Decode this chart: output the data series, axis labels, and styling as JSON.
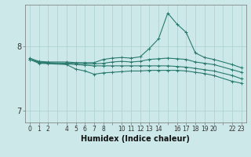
{
  "xlabel": "Humidex (Indice chaleur)",
  "bg_color": "#cce8e8",
  "line_color": "#2a7a6e",
  "grid_color": "#aacfcf",
  "hours": [
    0,
    1,
    2,
    3,
    4,
    5,
    6,
    7,
    8,
    9,
    10,
    11,
    12,
    13,
    14,
    15,
    16,
    17,
    18,
    19,
    20,
    21,
    22,
    23
  ],
  "series1": [
    7.82,
    7.77,
    7.76,
    null,
    7.76,
    7.75,
    7.75,
    7.75,
    7.8,
    7.82,
    7.83,
    7.82,
    7.84,
    7.97,
    8.12,
    8.52,
    8.35,
    8.22,
    7.9,
    7.83,
    7.8,
    null,
    7.72,
    7.67
  ],
  "series2": [
    7.8,
    7.76,
    7.75,
    null,
    7.74,
    7.74,
    7.73,
    7.73,
    7.74,
    7.76,
    7.77,
    7.76,
    7.77,
    7.8,
    7.81,
    7.82,
    7.81,
    7.8,
    7.76,
    7.74,
    7.72,
    null,
    7.64,
    7.6
  ],
  "series3": [
    7.8,
    7.75,
    7.74,
    null,
    7.73,
    7.72,
    7.71,
    7.7,
    7.7,
    7.7,
    7.7,
    7.7,
    7.7,
    7.7,
    7.7,
    7.7,
    7.69,
    7.68,
    7.66,
    7.64,
    7.62,
    null,
    7.55,
    7.5
  ],
  "series4": [
    7.8,
    7.74,
    null,
    null,
    7.72,
    7.65,
    7.62,
    7.57,
    7.59,
    7.6,
    7.61,
    7.62,
    7.62,
    7.63,
    7.63,
    7.63,
    7.63,
    7.62,
    7.6,
    7.58,
    7.55,
    null,
    7.46,
    7.43
  ],
  "yticks": [
    7.0,
    8.0
  ],
  "xtick_labels": [
    "0",
    "1",
    "2",
    "",
    "4",
    "5",
    "6",
    "7",
    "8",
    "",
    "10",
    "11",
    "12",
    "13",
    "14",
    "",
    "16",
    "17",
    "18",
    "19",
    "20",
    "",
    "22",
    "23"
  ],
  "ylim": [
    6.82,
    8.65
  ],
  "xlim": [
    -0.5,
    23.5
  ]
}
